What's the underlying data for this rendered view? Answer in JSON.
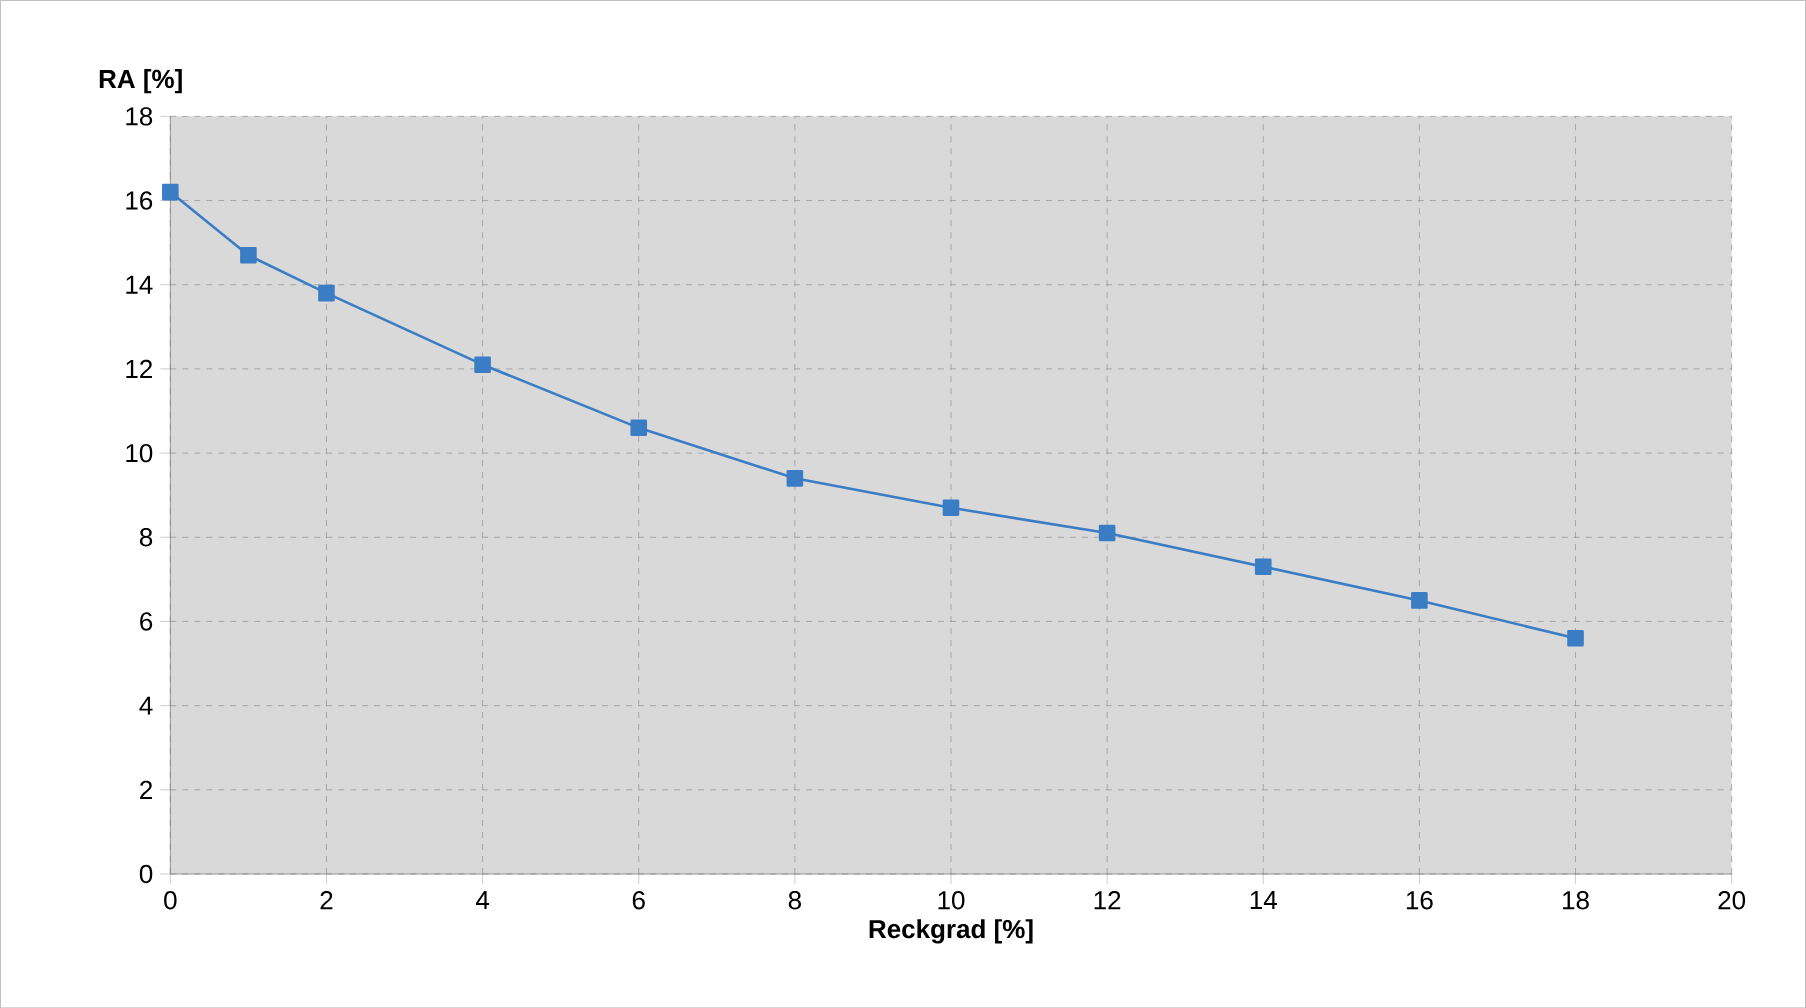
{
  "chart_data": {
    "type": "line",
    "xlabel": "Reckgrad [%]",
    "ylabel": "RA [%]",
    "x": [
      0,
      1,
      2,
      4,
      6,
      8,
      10,
      12,
      14,
      16,
      18
    ],
    "series": [
      {
        "color": "#3b7dc4",
        "values": [
          16.2,
          14.7,
          13.8,
          12.1,
          10.6,
          9.4,
          8.7,
          8.1,
          7.3,
          6.5,
          5.6
        ]
      }
    ],
    "xlim": [
      0,
      20
    ],
    "ylim": [
      0,
      18
    ],
    "xticks": [
      0,
      2,
      4,
      6,
      8,
      10,
      12,
      14,
      16,
      18,
      20
    ],
    "yticks": [
      0,
      2,
      4,
      6,
      8,
      10,
      12,
      14,
      16,
      18
    ],
    "grid": true,
    "marker": "square",
    "line_style": "solid"
  }
}
